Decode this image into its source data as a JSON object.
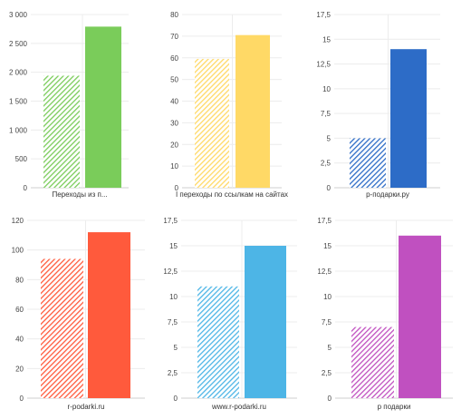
{
  "chart_data": [
    {
      "type": "bar",
      "categories": [
        "Переходы из п..."
      ],
      "series": [
        {
          "values": [
            1940
          ]
        },
        {
          "values": [
            2790
          ]
        }
      ],
      "colors": [
        "#7acc5a",
        "#7acc5a"
      ],
      "yticks": [
        "0",
        "500",
        "1 000",
        "1 500",
        "2 000",
        "2 500",
        "3 000"
      ],
      "ylim": [
        0,
        3000
      ],
      "grid": true
    },
    {
      "type": "bar",
      "categories": [
        "I переходы по ссылкам на сайтах"
      ],
      "series": [
        {
          "values": [
            59.5
          ]
        },
        {
          "values": [
            70.5
          ]
        }
      ],
      "colors": [
        "#ffd966",
        "#ffd966"
      ],
      "yticks": [
        "0",
        "10",
        "20",
        "30",
        "40",
        "50",
        "60",
        "70",
        "80"
      ],
      "ylim": [
        0,
        80
      ],
      "grid": true
    },
    {
      "type": "bar",
      "categories": [
        "p-подарки.ру"
      ],
      "series": [
        {
          "values": [
            5
          ]
        },
        {
          "values": [
            14
          ]
        }
      ],
      "colors": [
        "#2d6cc7",
        "#2d6cc7"
      ],
      "yticks": [
        "0",
        "2,5",
        "5",
        "7,5",
        "10",
        "12,5",
        "15",
        "17,5"
      ],
      "ylim": [
        0,
        17.5
      ],
      "grid": true
    },
    {
      "type": "bar",
      "categories": [
        "r-podarki.ru"
      ],
      "series": [
        {
          "values": [
            94
          ]
        },
        {
          "values": [
            112
          ]
        }
      ],
      "colors": [
        "#ff5a3c",
        "#ff5a3c"
      ],
      "yticks": [
        "0",
        "20",
        "40",
        "60",
        "80",
        "100",
        "120"
      ],
      "ylim": [
        0,
        120
      ],
      "grid": true
    },
    {
      "type": "bar",
      "categories": [
        "www.r-podarki.ru"
      ],
      "series": [
        {
          "values": [
            11
          ]
        },
        {
          "values": [
            15
          ]
        }
      ],
      "colors": [
        "#4db5e6",
        "#4db5e6"
      ],
      "yticks": [
        "0",
        "2,5",
        "5",
        "7,5",
        "10",
        "12,5",
        "15",
        "17,5"
      ],
      "ylim": [
        0,
        17.5
      ],
      "grid": true
    },
    {
      "type": "bar",
      "categories": [
        "р подарки"
      ],
      "series": [
        {
          "values": [
            7
          ]
        },
        {
          "values": [
            16
          ]
        }
      ],
      "colors": [
        "#c050c0",
        "#c050c0"
      ],
      "yticks": [
        "0",
        "2,5",
        "5",
        "7,5",
        "10",
        "12,5",
        "15",
        "17,5"
      ],
      "ylim": [
        0,
        17.5
      ],
      "grid": true
    }
  ]
}
